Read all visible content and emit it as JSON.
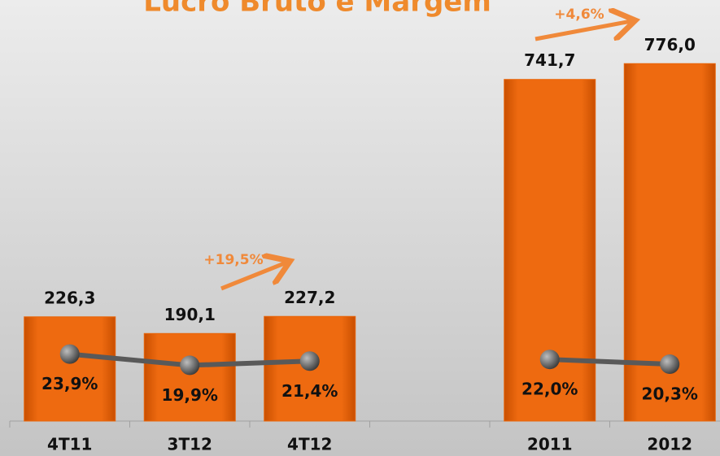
{
  "chart_data": {
    "type": "bar+line",
    "title": "Lucro Bruto e Margem",
    "categories": [
      "4T11",
      "3T12",
      "4T12",
      null,
      "2011",
      "2012"
    ],
    "series": [
      {
        "type": "bar",
        "color": "#e8650a",
        "values": [
          226.3,
          190.1,
          227.2,
          null,
          741.7,
          776.0
        ],
        "value_labels": [
          "226,3",
          "190,1",
          "227,2",
          null,
          "741,7",
          "776,0"
        ]
      },
      {
        "type": "line",
        "axis": "y2",
        "color": "#595959",
        "values": [
          23.9,
          19.9,
          21.4,
          null,
          22.0,
          20.3
        ],
        "value_labels": [
          "23,9%",
          "19,9%",
          "21,4%",
          null,
          "22,0%",
          "20,3%"
        ]
      }
    ],
    "ylim": [
      0,
      900
    ],
    "y2lim": [
      0,
      148
    ],
    "annotations": [
      "+19,5%",
      "+4,6%"
    ]
  }
}
